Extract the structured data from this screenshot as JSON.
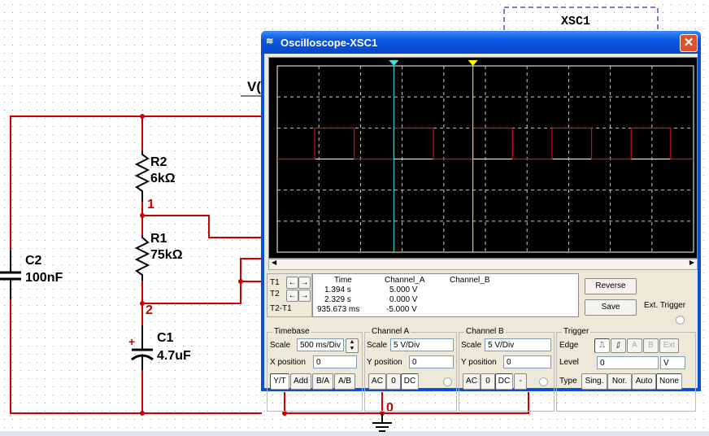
{
  "schematic": {
    "instrument_label": "XSC1",
    "partial_label": "V(",
    "components": [
      {
        "ref": "R2",
        "value": "6kΩ"
      },
      {
        "ref": "R1",
        "value": "75kΩ"
      },
      {
        "ref": "C2",
        "value": "100nF"
      },
      {
        "ref": "C1",
        "value": "4.7uF",
        "polarity": "+"
      }
    ],
    "nodes": [
      "1",
      "2",
      "0"
    ],
    "wire_color": "#cc0000"
  },
  "window": {
    "title": "Oscilloscope-XSC1",
    "close_icon": "close-icon",
    "app_icon": "oscilloscope-icon"
  },
  "screen": {
    "background": "#000000",
    "trace_color": "#cc1111",
    "cursor1_color": "#40e0e0",
    "cursor2_color": "#ffff00",
    "cursor1_label": "1",
    "cursor2_label": "2",
    "trace_high_intervals_div": [
      [
        0.9,
        1.85
      ],
      [
        2.8,
        3.75
      ],
      [
        4.7,
        5.65
      ],
      [
        6.6,
        7.55
      ],
      [
        8.5,
        9.45
      ]
    ],
    "trace_high_div": 1,
    "cursor1_div": 2.8,
    "cursor2_div": 4.7
  },
  "readout": {
    "headers": [
      "Time",
      "Channel_A",
      "Channel_B"
    ],
    "rows": [
      {
        "label": "T1",
        "time": "1.394 s",
        "a": "5.000 V",
        "b": ""
      },
      {
        "label": "T2",
        "time": "2.329 s",
        "a": "0.000 V",
        "b": ""
      },
      {
        "label": "T2-T1",
        "time": "935.673 ms",
        "a": "-5.000 V",
        "b": ""
      }
    ]
  },
  "buttons": {
    "reverse": "Reverse",
    "save": "Save",
    "ext_trigger": "Ext. Trigger"
  },
  "timebase": {
    "title": "Timebase",
    "scale_label": "Scale",
    "scale": "500 ms/Div",
    "xpos_label": "X position",
    "xpos": "0",
    "modes": [
      "Y/T",
      "Add",
      "B/A",
      "A/B"
    ],
    "active_mode": "Y/T"
  },
  "channel_a": {
    "title": "Channel A",
    "scale_label": "Scale",
    "scale": "5  V/Div",
    "ypos_label": "Y position",
    "ypos": "0",
    "coupling": [
      "AC",
      "0",
      "DC"
    ],
    "active": "DC"
  },
  "channel_b": {
    "title": "Channel B",
    "scale_label": "Scale",
    "scale": "5  V/Div",
    "ypos_label": "Y position",
    "ypos": "0",
    "coupling": [
      "AC",
      "0",
      "DC",
      "-"
    ],
    "active": "DC"
  },
  "trigger": {
    "title": "Trigger",
    "edge_label": "Edge",
    "edges": [
      "rising-edge-icon",
      "falling-edge-icon"
    ],
    "sources": [
      "A",
      "B",
      "Ext"
    ],
    "level_label": "Level",
    "level": "0",
    "level_unit": "V",
    "type_label": "Type",
    "types": [
      "Sing.",
      "Nor.",
      "Auto",
      "None"
    ],
    "active_type": "None"
  }
}
